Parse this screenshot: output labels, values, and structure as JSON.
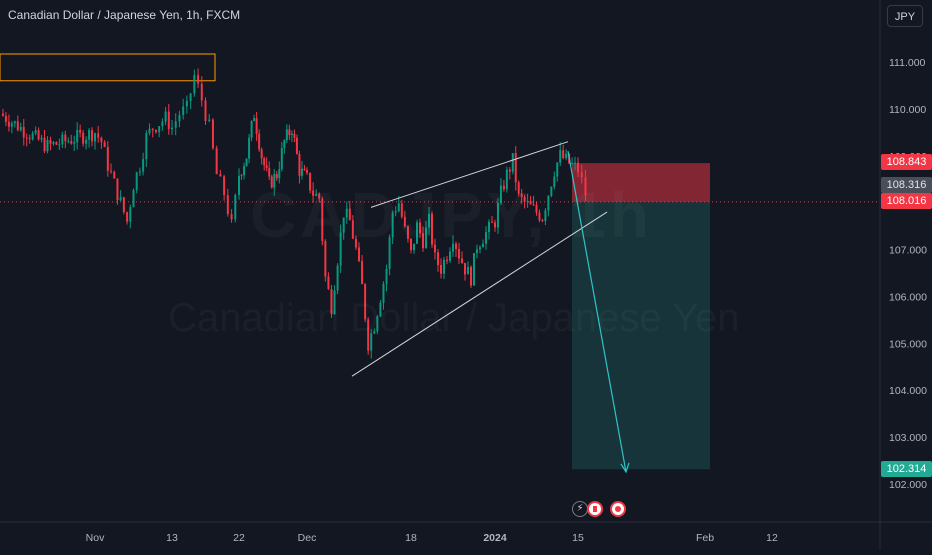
{
  "header": {
    "title": "Canadian Dollar / Japanese Yen, 1h, FXCM",
    "currency_button": "JPY"
  },
  "watermark": {
    "ticker": "CADJPY, 1h",
    "name": "Canadian Dollar / Japanese Yen"
  },
  "price_tags": {
    "stop_loss": "108.843",
    "last": "108.316",
    "entry": "108.016",
    "target": "102.314"
  },
  "colors": {
    "background": "#131722",
    "up_candle": "#089981",
    "down_candle": "#f23645",
    "risk_zone": "rgba(242,54,69,0.5)",
    "reward_zone": "rgba(34,171,148,0.2)",
    "trendline": "#d1d4dc",
    "projection_arrow": "#2ec5c8",
    "resistance_box": "#ff9800"
  },
  "event_icons": [
    "flash-icon",
    "canada-flag-icon",
    "japan-flag-icon"
  ],
  "chart_data": {
    "type": "candlestick",
    "title": "Canadian Dollar / Japanese Yen, 1h, FXCM",
    "xlabel": "",
    "ylabel": "",
    "y_ticks": [
      "102.000",
      "103.000",
      "104.000",
      "105.000",
      "106.000",
      "107.000",
      "108.000",
      "109.000",
      "110.000",
      "111.000"
    ],
    "ylim": [
      101.3,
      112.3
    ],
    "x_ticks": [
      "Nov",
      "13",
      "22",
      "Dec",
      "18",
      "2024",
      "15",
      "Feb",
      "12"
    ],
    "grid": false,
    "price_path": [
      [
        "Oct 30",
        109.9
      ],
      [
        "Oct 31",
        109.2
      ],
      [
        "Nov 1",
        109.5
      ],
      [
        "Nov 2",
        109.3
      ],
      [
        "Nov 3",
        108.8
      ],
      [
        "Nov 5",
        108.0
      ],
      [
        "Nov 6",
        107.6
      ],
      [
        "Nov 7",
        108.4
      ],
      [
        "Nov 8",
        108.8
      ],
      [
        "Nov 9",
        109.4
      ],
      [
        "Nov 10",
        109.6
      ],
      [
        "Nov 12",
        109.8
      ],
      [
        "Nov 13",
        109.6
      ],
      [
        "Nov 14",
        109.9
      ],
      [
        "Nov 15",
        110.0
      ],
      [
        "Nov 16",
        110.7
      ],
      [
        "Nov 17",
        110.2
      ],
      [
        "Nov 18",
        109.6
      ],
      [
        "Nov 19",
        108.6
      ],
      [
        "Nov 20",
        108.2
      ],
      [
        "Nov 21",
        107.5
      ],
      [
        "Nov 22",
        108.6
      ],
      [
        "Nov 23",
        109.0
      ],
      [
        "Nov 24",
        109.9
      ],
      [
        "Nov 25",
        109.0
      ],
      [
        "Nov 26",
        108.4
      ],
      [
        "Nov 27",
        108.6
      ],
      [
        "Nov 28",
        109.3
      ],
      [
        "Nov 29",
        109.6
      ],
      [
        "Nov 30",
        108.7
      ],
      [
        "Dec 1",
        108.5
      ],
      [
        "Dec 2",
        108.2
      ],
      [
        "Dec 3",
        108.1
      ],
      [
        "Dec 4",
        106.4
      ],
      [
        "Dec 5",
        105.8
      ],
      [
        "Dec 6",
        106.8
      ],
      [
        "Dec 7",
        107.8
      ],
      [
        "Dec 8",
        107.6
      ],
      [
        "Dec 9",
        107.0
      ],
      [
        "Dec 10",
        106.2
      ],
      [
        "Dec 11",
        105.0
      ],
      [
        "Dec 12",
        105.4
      ],
      [
        "Dec 13",
        106.0
      ],
      [
        "Dec 14",
        106.6
      ],
      [
        "Dec 15",
        107.8
      ],
      [
        "Dec 16",
        108.0
      ],
      [
        "Dec 17",
        107.4
      ],
      [
        "Dec 18",
        106.9
      ],
      [
        "Dec 19",
        107.5
      ],
      [
        "Dec 20",
        107.2
      ],
      [
        "Dec 21",
        107.6
      ],
      [
        "Dec 22",
        106.8
      ],
      [
        "Dec 23",
        106.6
      ],
      [
        "Dec 24",
        106.9
      ],
      [
        "Dec 25",
        107.3
      ],
      [
        "Dec 26",
        106.9
      ],
      [
        "Dec 27",
        106.6
      ],
      [
        "Dec 28",
        106.4
      ],
      [
        "Dec 29",
        107.1
      ],
      [
        "Jan 1",
        107.6
      ],
      [
        "Jan 2",
        108.2
      ],
      [
        "Jan 3",
        108.6
      ],
      [
        "Jan 4",
        108.9
      ],
      [
        "Jan 5",
        108.1
      ],
      [
        "Jan 8",
        107.8
      ],
      [
        "Jan 9",
        107.7
      ],
      [
        "Jan 10",
        108.2
      ],
      [
        "Jan 11",
        108.7
      ],
      [
        "Jan 12",
        109.0
      ],
      [
        "Jan 15",
        108.7
      ],
      [
        "Jan 16",
        108.2
      ]
    ],
    "annotations": {
      "rising_wedge": {
        "upper_line": [
          [
            "Dec 6",
            107.9
          ],
          [
            "Jan 13",
            109.3
          ]
        ],
        "lower_line": [
          [
            "Dec 4",
            104.3
          ],
          [
            "Jan 19",
            107.8
          ]
        ]
      },
      "short_position": {
        "entry": 108.016,
        "stop_loss": 108.843,
        "take_profit": 102.314
      },
      "projection_arrow": [
        [
          "Jan 13",
          109.1
        ],
        [
          "Jan 24",
          102.3
        ]
      ],
      "resistance_zone": [
        110.6,
        111.0
      ]
    }
  }
}
